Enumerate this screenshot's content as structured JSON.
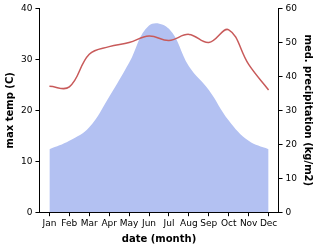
{
  "chart_data": {
    "type": "line",
    "x_label": "date (month)",
    "y_label": "max temp (C)",
    "y2_label": "med. precipitation (kg/m2)",
    "categories": [
      "Jan",
      "Feb",
      "Mar",
      "Apr",
      "May",
      "Jun",
      "Jul",
      "Aug",
      "Sep",
      "Oct",
      "Nov",
      "Dec"
    ],
    "series": [
      {
        "type": "area",
        "axis": "y2",
        "color": "#b3c1f2",
        "values": [
          18.5,
          21,
          25,
          34,
          44,
          55,
          54,
          43,
          36,
          27,
          21,
          18.5
        ]
      },
      {
        "type": "line",
        "color": "#c85a5a",
        "values": [
          24.7,
          24.6,
          31,
          32.5,
          33.3,
          34.6,
          33.7,
          34.9,
          33.3,
          35.8,
          29,
          24
        ]
      }
    ],
    "ylim": [
      0,
      40
    ],
    "yticks": [
      0,
      10,
      20,
      30,
      40
    ],
    "y2lim": [
      0,
      60
    ],
    "y2ticks": [
      0,
      10,
      20,
      30,
      40,
      50,
      60
    ],
    "grid": false
  }
}
